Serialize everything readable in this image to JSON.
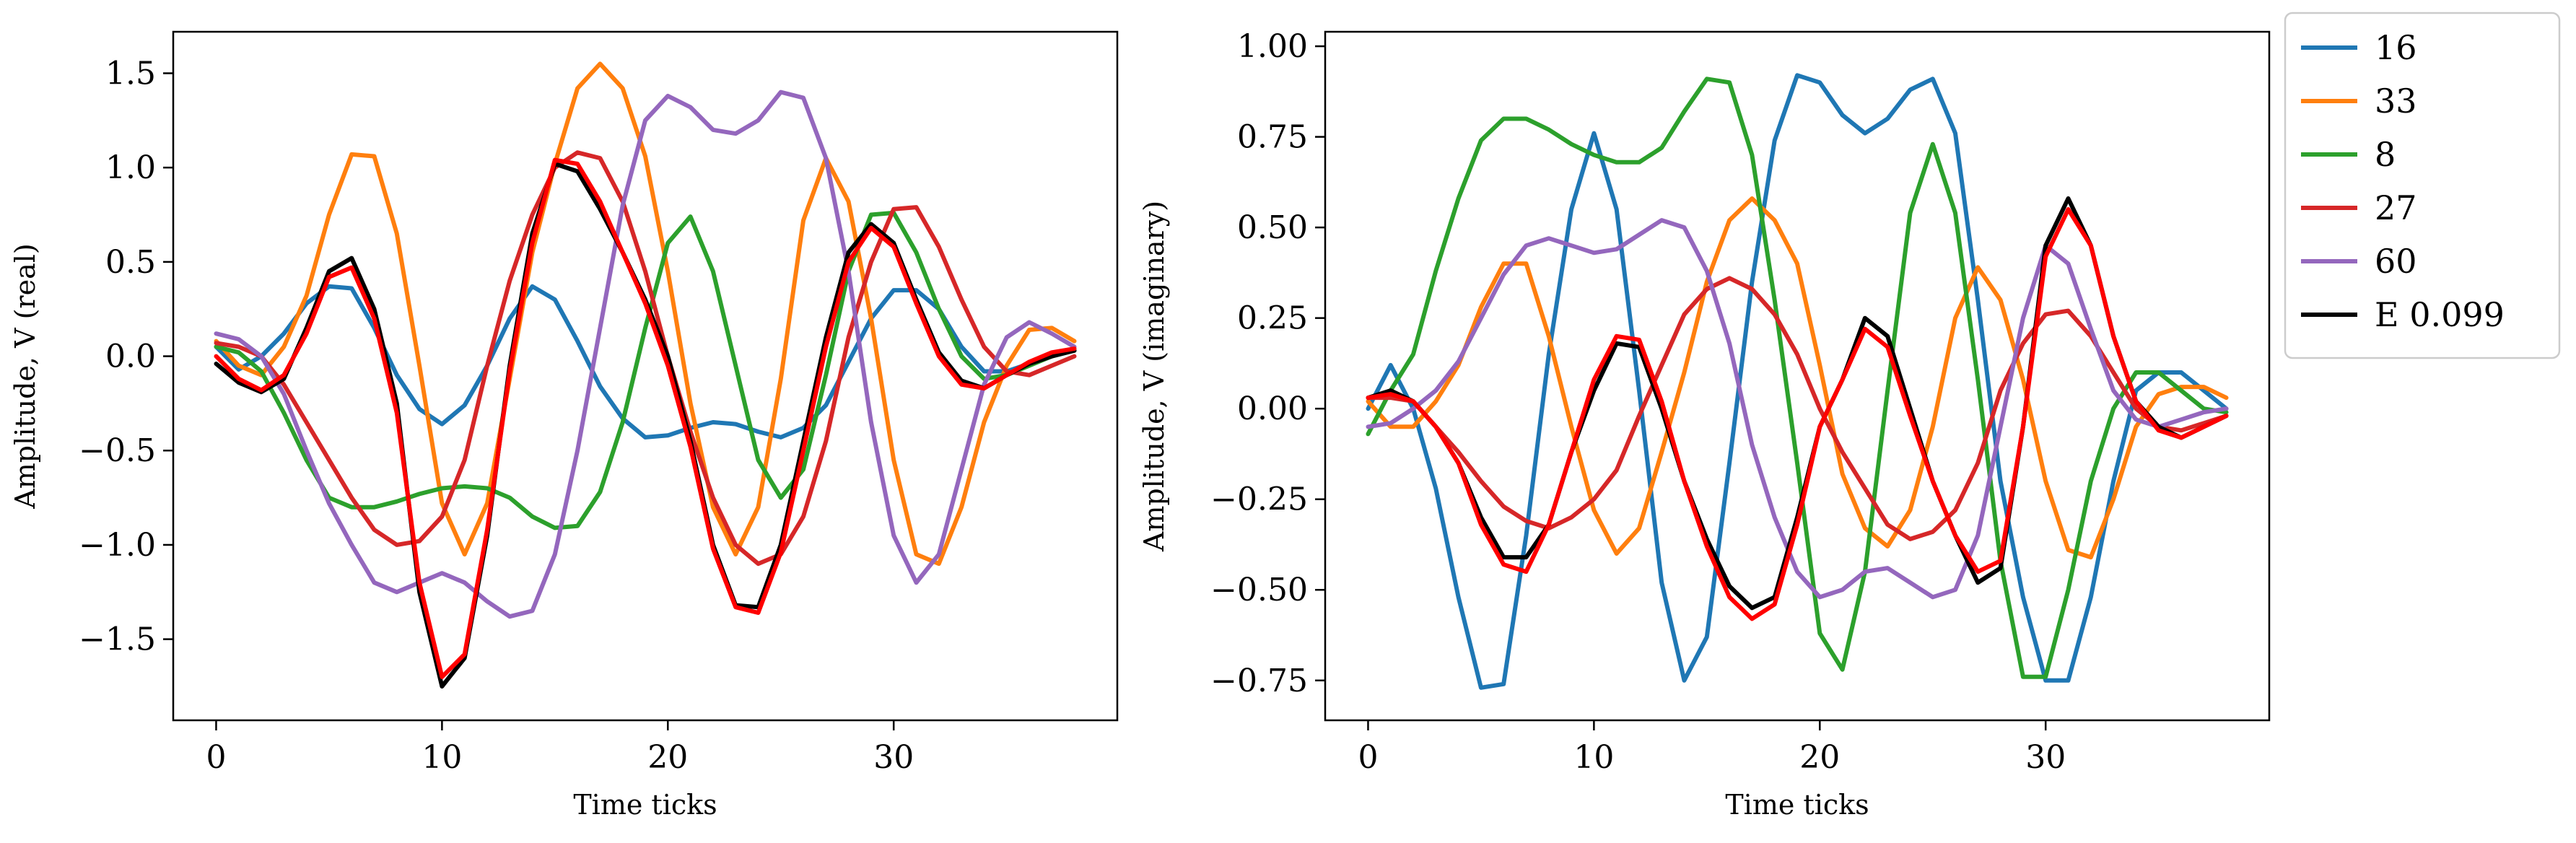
{
  "chart_data": [
    {
      "type": "line",
      "title": "",
      "xlabel": "Time ticks",
      "ylabel": "Amplitude, V (real)",
      "xlim": [
        -1.9,
        39.9
      ],
      "ylim": [
        -1.93,
        1.72
      ],
      "xticks": [
        0,
        10,
        20,
        30
      ],
      "yticks": [
        -1.5,
        -1.0,
        -0.5,
        0.0,
        0.5,
        1.0,
        1.5
      ],
      "ytick_labels": [
        "−1.5",
        "−1.0",
        "−0.5",
        "0.0",
        "0.5",
        "1.0",
        "1.5"
      ],
      "grid": false,
      "x": [
        0,
        1,
        2,
        3,
        4,
        5,
        6,
        7,
        8,
        9,
        10,
        11,
        12,
        13,
        14,
        15,
        16,
        17,
        18,
        19,
        20,
        21,
        22,
        23,
        24,
        25,
        26,
        27,
        28,
        29,
        30,
        31,
        32,
        33,
        34,
        35,
        36,
        37,
        38
      ],
      "series": [
        {
          "name": "16",
          "color": "#1f77b4",
          "values": [
            0.05,
            -0.07,
            0.0,
            0.12,
            0.28,
            0.37,
            0.36,
            0.15,
            -0.1,
            -0.28,
            -0.36,
            -0.26,
            -0.05,
            0.2,
            0.37,
            0.3,
            0.08,
            -0.16,
            -0.33,
            -0.43,
            -0.42,
            -0.38,
            -0.35,
            -0.36,
            -0.4,
            -0.43,
            -0.38,
            -0.26,
            -0.03,
            0.2,
            0.35,
            0.35,
            0.25,
            0.05,
            -0.08,
            -0.08,
            -0.04,
            0.0,
            0.03
          ]
        },
        {
          "name": "33",
          "color": "#ff7f0e",
          "values": [
            0.08,
            -0.05,
            -0.1,
            0.05,
            0.32,
            0.75,
            1.07,
            1.06,
            0.65,
            -0.05,
            -0.78,
            -1.05,
            -0.78,
            -0.12,
            0.55,
            1.02,
            1.42,
            1.55,
            1.42,
            1.06,
            0.45,
            -0.25,
            -0.8,
            -1.05,
            -0.8,
            -0.12,
            0.72,
            1.05,
            0.82,
            0.2,
            -0.55,
            -1.05,
            -1.1,
            -0.8,
            -0.35,
            -0.05,
            0.14,
            0.15,
            0.08
          ]
        },
        {
          "name": "8",
          "color": "#2ca02c",
          "values": [
            0.05,
            0.02,
            -0.08,
            -0.3,
            -0.55,
            -0.75,
            -0.8,
            -0.8,
            -0.77,
            -0.73,
            -0.7,
            -0.69,
            -0.7,
            -0.75,
            -0.85,
            -0.91,
            -0.9,
            -0.72,
            -0.35,
            0.15,
            0.6,
            0.74,
            0.45,
            -0.05,
            -0.55,
            -0.75,
            -0.6,
            -0.1,
            0.45,
            0.75,
            0.76,
            0.55,
            0.25,
            0.0,
            -0.12,
            -0.1,
            -0.05,
            0.0,
            0.03
          ]
        },
        {
          "name": "27",
          "color": "#d62728",
          "values": [
            0.07,
            0.05,
            0.0,
            -0.15,
            -0.35,
            -0.55,
            -0.75,
            -0.92,
            -1.0,
            -0.98,
            -0.85,
            -0.55,
            -0.05,
            0.4,
            0.75,
            1.0,
            1.08,
            1.05,
            0.82,
            0.45,
            0.0,
            -0.4,
            -0.75,
            -1.0,
            -1.1,
            -1.05,
            -0.85,
            -0.45,
            0.1,
            0.5,
            0.78,
            0.79,
            0.58,
            0.3,
            0.05,
            -0.08,
            -0.1,
            -0.05,
            0.0
          ]
        },
        {
          "name": "60",
          "color": "#9467bd",
          "values": [
            0.12,
            0.09,
            0.0,
            -0.2,
            -0.5,
            -0.78,
            -1.0,
            -1.2,
            -1.25,
            -1.2,
            -1.15,
            -1.2,
            -1.3,
            -1.38,
            -1.35,
            -1.05,
            -0.5,
            0.15,
            0.8,
            1.25,
            1.38,
            1.32,
            1.2,
            1.18,
            1.25,
            1.4,
            1.37,
            1.05,
            0.45,
            -0.35,
            -0.95,
            -1.2,
            -1.05,
            -0.6,
            -0.15,
            0.1,
            0.18,
            0.12,
            0.05
          ]
        },
        {
          "name": "E 0.099",
          "color": "#000000",
          "values": [
            -0.04,
            -0.14,
            -0.19,
            -0.12,
            0.15,
            0.45,
            0.52,
            0.25,
            -0.25,
            -1.25,
            -1.75,
            -1.6,
            -0.95,
            -0.05,
            0.65,
            1.02,
            0.98,
            0.78,
            0.55,
            0.3,
            0.0,
            -0.45,
            -1.0,
            -1.32,
            -1.33,
            -1.0,
            -0.45,
            0.1,
            0.55,
            0.7,
            0.6,
            0.3,
            0.02,
            -0.13,
            -0.17,
            -0.1,
            -0.04,
            0.0,
            0.03
          ]
        },
        {
          "name": "",
          "color": "#ff0000",
          "values": [
            0.0,
            -0.12,
            -0.18,
            -0.1,
            0.12,
            0.42,
            0.47,
            0.2,
            -0.3,
            -1.2,
            -1.7,
            -1.58,
            -0.92,
            -0.08,
            0.6,
            1.04,
            1.02,
            0.82,
            0.55,
            0.28,
            -0.05,
            -0.48,
            -1.02,
            -1.33,
            -1.36,
            -1.04,
            -0.5,
            0.05,
            0.5,
            0.68,
            0.58,
            0.28,
            0.0,
            -0.15,
            -0.17,
            -0.1,
            -0.03,
            0.02,
            0.04
          ]
        }
      ]
    },
    {
      "type": "line",
      "title": "",
      "xlabel": "Time ticks",
      "ylabel": "Amplitude, V (imaginary)",
      "xlim": [
        -1.9,
        39.9
      ],
      "ylim": [
        -0.86,
        1.04
      ],
      "xticks": [
        0,
        10,
        20,
        30
      ],
      "yticks": [
        -0.75,
        -0.5,
        -0.25,
        0.0,
        0.25,
        0.5,
        0.75,
        1.0
      ],
      "ytick_labels": [
        "−0.75",
        "−0.50",
        "−0.25",
        "0.00",
        "0.25",
        "0.50",
        "0.75",
        "1.00"
      ],
      "grid": false,
      "legend": "outside-right",
      "x": [
        0,
        1,
        2,
        3,
        4,
        5,
        6,
        7,
        8,
        9,
        10,
        11,
        12,
        13,
        14,
        15,
        16,
        17,
        18,
        19,
        20,
        21,
        22,
        23,
        24,
        25,
        26,
        27,
        28,
        29,
        30,
        31,
        32,
        33,
        34,
        35,
        36,
        37,
        38
      ],
      "series": [
        {
          "name": "16",
          "color": "#1f77b4",
          "values": [
            0.0,
            0.12,
            0.0,
            -0.22,
            -0.52,
            -0.77,
            -0.76,
            -0.35,
            0.15,
            0.55,
            0.76,
            0.55,
            0.05,
            -0.48,
            -0.75,
            -0.63,
            -0.15,
            0.35,
            0.74,
            0.92,
            0.9,
            0.81,
            0.76,
            0.8,
            0.88,
            0.91,
            0.76,
            0.3,
            -0.2,
            -0.52,
            -0.75,
            -0.75,
            -0.52,
            -0.2,
            0.05,
            0.1,
            0.1,
            0.05,
            0.0
          ]
        },
        {
          "name": "33",
          "color": "#ff7f0e",
          "values": [
            0.02,
            -0.05,
            -0.05,
            0.02,
            0.12,
            0.28,
            0.4,
            0.4,
            0.2,
            -0.05,
            -0.28,
            -0.4,
            -0.33,
            -0.12,
            0.1,
            0.35,
            0.52,
            0.58,
            0.52,
            0.4,
            0.12,
            -0.18,
            -0.33,
            -0.38,
            -0.28,
            -0.05,
            0.25,
            0.39,
            0.3,
            0.08,
            -0.2,
            -0.39,
            -0.41,
            -0.25,
            -0.05,
            0.04,
            0.06,
            0.06,
            0.03
          ]
        },
        {
          "name": "8",
          "color": "#2ca02c",
          "values": [
            -0.07,
            0.05,
            0.15,
            0.38,
            0.58,
            0.74,
            0.8,
            0.8,
            0.77,
            0.73,
            0.7,
            0.68,
            0.68,
            0.72,
            0.82,
            0.91,
            0.9,
            0.7,
            0.3,
            -0.15,
            -0.62,
            -0.72,
            -0.45,
            0.05,
            0.54,
            0.73,
            0.54,
            0.08,
            -0.42,
            -0.74,
            -0.74,
            -0.5,
            -0.2,
            0.0,
            0.1,
            0.1,
            0.05,
            0.0,
            -0.01
          ]
        },
        {
          "name": "27",
          "color": "#d62728",
          "values": [
            0.03,
            0.03,
            0.02,
            -0.05,
            -0.12,
            -0.2,
            -0.27,
            -0.31,
            -0.33,
            -0.3,
            -0.25,
            -0.17,
            -0.02,
            0.12,
            0.26,
            0.33,
            0.36,
            0.33,
            0.26,
            0.15,
            0.0,
            -0.12,
            -0.22,
            -0.32,
            -0.36,
            -0.34,
            -0.28,
            -0.15,
            0.05,
            0.18,
            0.26,
            0.27,
            0.2,
            0.1,
            0.0,
            -0.05,
            -0.06,
            -0.04,
            -0.02
          ]
        },
        {
          "name": "60",
          "color": "#9467bd",
          "values": [
            -0.05,
            -0.04,
            0.0,
            0.05,
            0.13,
            0.25,
            0.37,
            0.45,
            0.47,
            0.45,
            0.43,
            0.44,
            0.48,
            0.52,
            0.5,
            0.38,
            0.18,
            -0.1,
            -0.3,
            -0.45,
            -0.52,
            -0.5,
            -0.45,
            -0.44,
            -0.48,
            -0.52,
            -0.5,
            -0.35,
            -0.05,
            0.25,
            0.45,
            0.4,
            0.22,
            0.05,
            -0.03,
            -0.05,
            -0.03,
            -0.01,
            0.0
          ]
        },
        {
          "name": "E 0.099",
          "color": "#000000",
          "values": [
            0.03,
            0.05,
            0.02,
            -0.05,
            -0.15,
            -0.3,
            -0.41,
            -0.41,
            -0.32,
            -0.12,
            0.05,
            0.18,
            0.17,
            0.0,
            -0.2,
            -0.36,
            -0.49,
            -0.55,
            -0.52,
            -0.3,
            -0.05,
            0.08,
            0.25,
            0.2,
            0.0,
            -0.2,
            -0.35,
            -0.48,
            -0.44,
            -0.05,
            0.45,
            0.58,
            0.45,
            0.2,
            0.02,
            -0.05,
            -0.08,
            -0.05,
            -0.02
          ]
        },
        {
          "name": "",
          "color": "#ff0000",
          "values": [
            0.03,
            0.04,
            0.02,
            -0.05,
            -0.15,
            -0.32,
            -0.43,
            -0.45,
            -0.32,
            -0.12,
            0.08,
            0.2,
            0.19,
            0.02,
            -0.2,
            -0.38,
            -0.52,
            -0.58,
            -0.54,
            -0.32,
            -0.05,
            0.08,
            0.22,
            0.17,
            -0.02,
            -0.2,
            -0.35,
            -0.45,
            -0.42,
            -0.05,
            0.42,
            0.55,
            0.45,
            0.2,
            0.02,
            -0.06,
            -0.08,
            -0.05,
            -0.02
          ]
        }
      ]
    }
  ]
}
